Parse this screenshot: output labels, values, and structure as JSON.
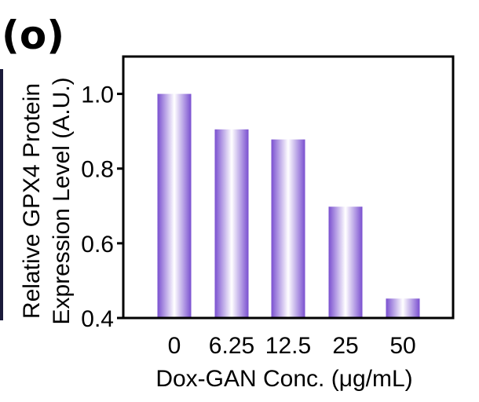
{
  "figure": {
    "panel_label": "(o)"
  },
  "chart_data": {
    "type": "bar",
    "categories": [
      "0",
      "6.25",
      "12.5",
      "25",
      "50"
    ],
    "values": [
      1.0,
      0.905,
      0.878,
      0.698,
      0.452
    ],
    "xlabel": "Dox-GAN Conc. (μg/mL)",
    "ylabel_lines": [
      "Relative GPX4 Protein",
      "Expression Level (A.U.)"
    ],
    "ylim": [
      0.4,
      1.1
    ],
    "yticks": [
      0.4,
      0.6,
      0.8,
      1.0
    ],
    "ytick_labels": [
      "0.4",
      "0.6",
      "0.8",
      "1.0"
    ],
    "grid": false,
    "legend": "none",
    "bar_gradient": {
      "edge": "#7a50d0",
      "center": "#ffffff"
    }
  }
}
